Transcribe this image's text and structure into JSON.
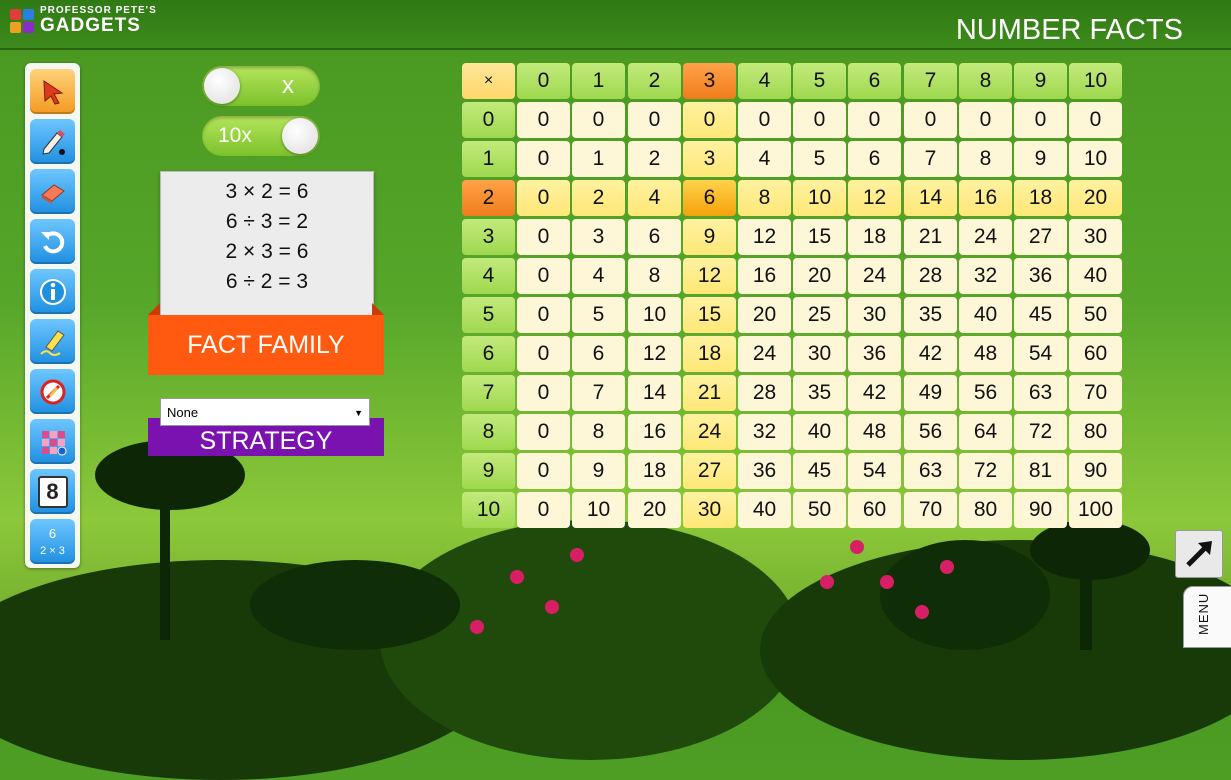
{
  "app": {
    "logo_top": "PROFESSOR PETE'S",
    "logo_bottom": "GADGETS",
    "title": "NUMBER FACTS"
  },
  "toolbar": {
    "tools": [
      {
        "name": "pointer-tool",
        "icon": "arrow-pointer-icon",
        "active": true
      },
      {
        "name": "pen-tool",
        "icon": "pencil-icon"
      },
      {
        "name": "eraser-tool",
        "icon": "eraser-icon"
      },
      {
        "name": "undo-tool",
        "icon": "undo-icon"
      },
      {
        "name": "info-tool",
        "icon": "info-icon"
      },
      {
        "name": "highlighter-tool",
        "icon": "highlighter-icon"
      },
      {
        "name": "clear-tool",
        "icon": "no-draw-icon"
      },
      {
        "name": "color-grid-tool",
        "icon": "color-grid-icon"
      },
      {
        "name": "number-tool",
        "icon": "number-card-icon",
        "label": "8"
      },
      {
        "name": "fact-family-tool",
        "icon": "fact-family-icon",
        "label_top": "6",
        "label_bottom": "2 × 3"
      }
    ]
  },
  "toggles": {
    "operation": {
      "label": "x",
      "on": false
    },
    "ten_x": {
      "label": "10x",
      "on": true
    }
  },
  "fact_family": {
    "lines": [
      "3 × 2 = 6",
      "6 ÷ 3 = 2",
      "2 × 3 = 6",
      "6 ÷ 2 = 3"
    ],
    "label": "FACT FAMILY"
  },
  "strategy": {
    "selected": "None",
    "label": "STRATEGY"
  },
  "table": {
    "corner": "×",
    "columns": [
      "0",
      "1",
      "2",
      "3",
      "4",
      "5",
      "6",
      "7",
      "8",
      "9",
      "10"
    ],
    "rows": [
      "0",
      "1",
      "2",
      "3",
      "4",
      "5",
      "6",
      "7",
      "8",
      "9",
      "10"
    ],
    "selected_column": 3,
    "selected_row": 2,
    "cells": [
      [
        "0",
        "0",
        "0",
        "0",
        "0",
        "0",
        "0",
        "0",
        "0",
        "0",
        "0"
      ],
      [
        "0",
        "1",
        "2",
        "3",
        "4",
        "5",
        "6",
        "7",
        "8",
        "9",
        "10"
      ],
      [
        "0",
        "2",
        "4",
        "6",
        "8",
        "10",
        "12",
        "14",
        "16",
        "18",
        "20"
      ],
      [
        "0",
        "3",
        "6",
        "9",
        "12",
        "15",
        "18",
        "21",
        "24",
        "27",
        "30"
      ],
      [
        "0",
        "4",
        "8",
        "12",
        "16",
        "20",
        "24",
        "28",
        "32",
        "36",
        "40"
      ],
      [
        "0",
        "5",
        "10",
        "15",
        "20",
        "25",
        "30",
        "35",
        "40",
        "45",
        "50"
      ],
      [
        "0",
        "6",
        "12",
        "18",
        "24",
        "30",
        "36",
        "42",
        "48",
        "54",
        "60"
      ],
      [
        "0",
        "7",
        "14",
        "21",
        "28",
        "35",
        "42",
        "49",
        "56",
        "63",
        "70"
      ],
      [
        "0",
        "8",
        "16",
        "24",
        "32",
        "40",
        "48",
        "56",
        "64",
        "72",
        "80"
      ],
      [
        "0",
        "9",
        "18",
        "27",
        "36",
        "45",
        "54",
        "63",
        "72",
        "81",
        "90"
      ],
      [
        "0",
        "10",
        "20",
        "30",
        "40",
        "50",
        "60",
        "70",
        "80",
        "90",
        "100"
      ]
    ]
  },
  "colors": {
    "header_green": "#9fd84e",
    "selected_orange": "#f07d1a",
    "corner_yellow": "#ffd86a",
    "highlight_yellow": "#ffe877",
    "cell_cream": "#fdf7d8"
  },
  "menu": {
    "label": "MENU",
    "expand_icon": "expand-arrow-icon"
  }
}
